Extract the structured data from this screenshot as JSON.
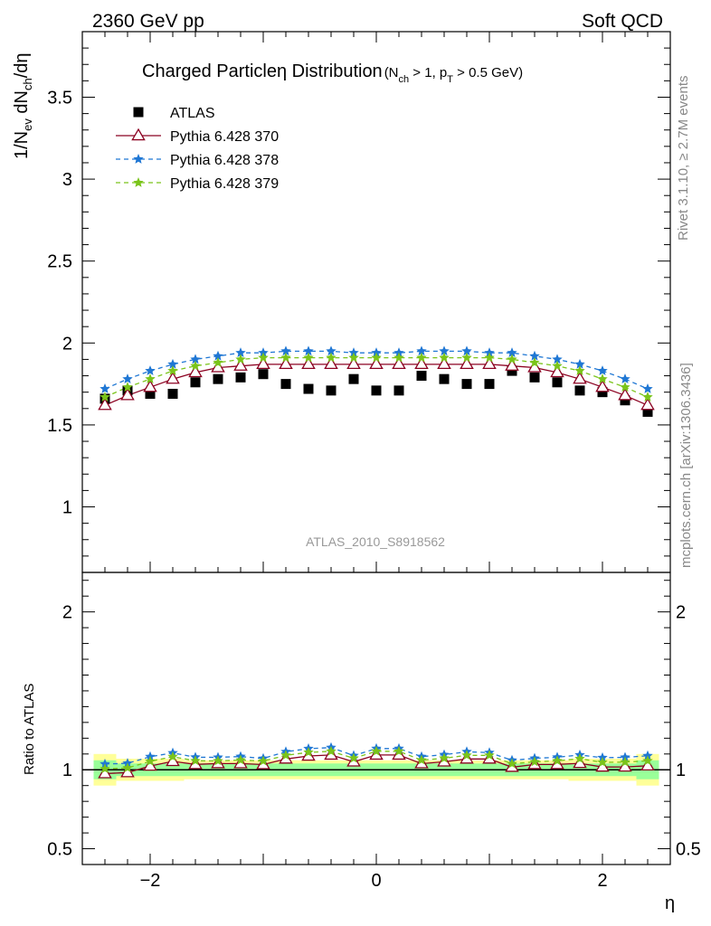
{
  "header": {
    "left": "2360 GeV pp",
    "right": "Soft QCD"
  },
  "side_labels": {
    "top": "Rivet 3.1.10, ≥ 2.7M events",
    "bottom": "mcplots.cern.ch [arXiv:1306.3436]"
  },
  "chart_data": {
    "type": "scatter",
    "title": "Charged Particleη Distribution",
    "title_cuts": "(N",
    "title_cuts_sub1": "ch",
    "title_cuts_mid": " > 1, p",
    "title_cuts_sub2": "T",
    "title_cuts_end": " > 0.5 GeV)",
    "analysis_label": "ATLAS_2010_S8918562",
    "xlabel": "η",
    "ylabel_main_parts": [
      "1/N",
      "ev",
      " dN",
      "ch",
      "/dη"
    ],
    "ylabel_ratio": "Ratio to ATLAS",
    "xlim": [
      -2.6,
      2.6
    ],
    "ylim_main": [
      0.6,
      3.9
    ],
    "ylim_ratio": [
      0.4,
      2.25
    ],
    "x_ticks": [
      -2,
      0,
      2
    ],
    "x_tick_labels": [
      "−2",
      "0",
      "2"
    ],
    "y_ticks_main": [
      1,
      1.5,
      2,
      2.5,
      3,
      3.5
    ],
    "y_tick_labels_main": [
      "1",
      "1.5",
      "2",
      "2.5",
      "3",
      "3.5"
    ],
    "y_ticks_ratio": [
      0.5,
      1,
      2
    ],
    "y_tick_labels_ratio": [
      "0.5",
      "1",
      "2"
    ],
    "legend_position": "top-left",
    "x": [
      -2.4,
      -2.2,
      -2.0,
      -1.8,
      -1.6,
      -1.4,
      -1.2,
      -1.0,
      -0.8,
      -0.6,
      -0.4,
      -0.2,
      0.0,
      0.2,
      0.4,
      0.6,
      0.8,
      1.0,
      1.2,
      1.4,
      1.6,
      1.8,
      2.0,
      2.2,
      2.4
    ],
    "series": [
      {
        "name": "ATLAS",
        "marker": "square",
        "color": "#000000",
        "values": [
          1.66,
          1.71,
          1.69,
          1.69,
          1.76,
          1.78,
          1.79,
          1.81,
          1.75,
          1.72,
          1.71,
          1.78,
          1.71,
          1.71,
          1.8,
          1.78,
          1.75,
          1.75,
          1.83,
          1.79,
          1.76,
          1.71,
          1.7,
          1.65,
          1.58
        ]
      },
      {
        "name": "Pythia 6.428 370",
        "marker": "open-triangle",
        "line": "solid",
        "color": "#8b0020",
        "values": [
          1.62,
          1.68,
          1.73,
          1.78,
          1.82,
          1.85,
          1.86,
          1.87,
          1.87,
          1.87,
          1.87,
          1.87,
          1.87,
          1.87,
          1.87,
          1.87,
          1.87,
          1.87,
          1.86,
          1.85,
          1.82,
          1.78,
          1.73,
          1.68,
          1.62
        ]
      },
      {
        "name": "Pythia 6.428 378",
        "marker": "star",
        "line": "dashed",
        "color": "#1f77d4",
        "values": [
          1.72,
          1.78,
          1.83,
          1.87,
          1.9,
          1.92,
          1.94,
          1.94,
          1.95,
          1.95,
          1.95,
          1.94,
          1.94,
          1.94,
          1.95,
          1.95,
          1.95,
          1.94,
          1.94,
          1.92,
          1.9,
          1.87,
          1.83,
          1.78,
          1.72
        ]
      },
      {
        "name": "Pythia 6.428 379",
        "marker": "star",
        "line": "dashed",
        "color": "#7ac41a",
        "values": [
          1.67,
          1.73,
          1.78,
          1.83,
          1.86,
          1.88,
          1.9,
          1.91,
          1.91,
          1.91,
          1.91,
          1.91,
          1.91,
          1.91,
          1.91,
          1.91,
          1.91,
          1.91,
          1.9,
          1.88,
          1.86,
          1.83,
          1.78,
          1.73,
          1.67
        ]
      }
    ],
    "ratio_bands": {
      "inner": {
        "color": "#99ff99",
        "half_width": [
          0.06,
          0.04,
          0.04,
          0.04,
          0.04,
          0.04,
          0.04,
          0.04,
          0.04,
          0.04,
          0.04,
          0.04,
          0.04,
          0.04,
          0.04,
          0.04,
          0.04,
          0.04,
          0.04,
          0.04,
          0.04,
          0.04,
          0.04,
          0.04,
          0.06
        ]
      },
      "outer": {
        "color": "#ffff99",
        "half_width": [
          0.1,
          0.07,
          0.07,
          0.07,
          0.06,
          0.06,
          0.06,
          0.06,
          0.06,
          0.06,
          0.06,
          0.06,
          0.06,
          0.06,
          0.06,
          0.06,
          0.06,
          0.06,
          0.06,
          0.06,
          0.06,
          0.07,
          0.07,
          0.07,
          0.1
        ]
      }
    }
  }
}
